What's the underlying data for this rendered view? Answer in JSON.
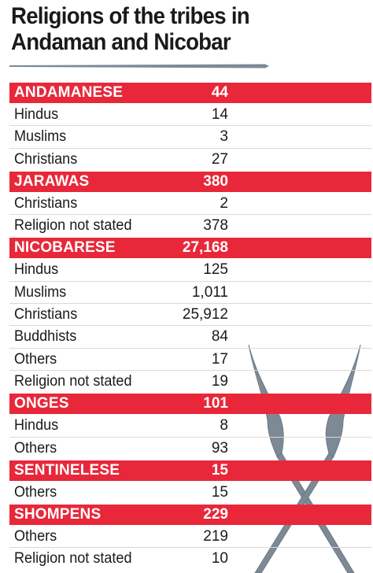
{
  "title_line1": "Religions of the tribes in",
  "title_line2": "Andaman and Nicobar",
  "colors": {
    "header_bg": "#e8283a",
    "header_text": "#ffffff",
    "spear": "#7d8a96"
  },
  "chart_data": {
    "type": "table",
    "title": "Religions of the tribes in Andaman and Nicobar",
    "groups": [
      {
        "tribe": "ANDAMANESE",
        "total": "44",
        "rows": [
          {
            "label": "Hindus",
            "value": "14"
          },
          {
            "label": "Muslims",
            "value": "3"
          },
          {
            "label": "Christians",
            "value": "27"
          }
        ]
      },
      {
        "tribe": "JARAWAS",
        "total": "380",
        "rows": [
          {
            "label": "Christians",
            "value": "2"
          },
          {
            "label": "Religion not stated",
            "value": "378"
          }
        ]
      },
      {
        "tribe": "NICOBARESE",
        "total": "27,168",
        "rows": [
          {
            "label": "Hindus",
            "value": "125"
          },
          {
            "label": "Muslims",
            "value": "1,011"
          },
          {
            "label": "Christians",
            "value": "25,912"
          },
          {
            "label": "Buddhists",
            "value": "84"
          },
          {
            "label": "Others",
            "value": "17"
          },
          {
            "label": "Religion not stated",
            "value": "19"
          }
        ]
      },
      {
        "tribe": "ONGES",
        "total": "101",
        "rows": [
          {
            "label": "Hindus",
            "value": "8"
          },
          {
            "label": "Others",
            "value": "93"
          }
        ]
      },
      {
        "tribe": "SENTINELESE",
        "total": "15",
        "rows": [
          {
            "label": "Others",
            "value": "15"
          }
        ]
      },
      {
        "tribe": "SHOMPENS",
        "total": "229",
        "rows": [
          {
            "label": "Others",
            "value": "219"
          },
          {
            "label": "Religion not stated",
            "value": "10"
          }
        ]
      }
    ]
  }
}
